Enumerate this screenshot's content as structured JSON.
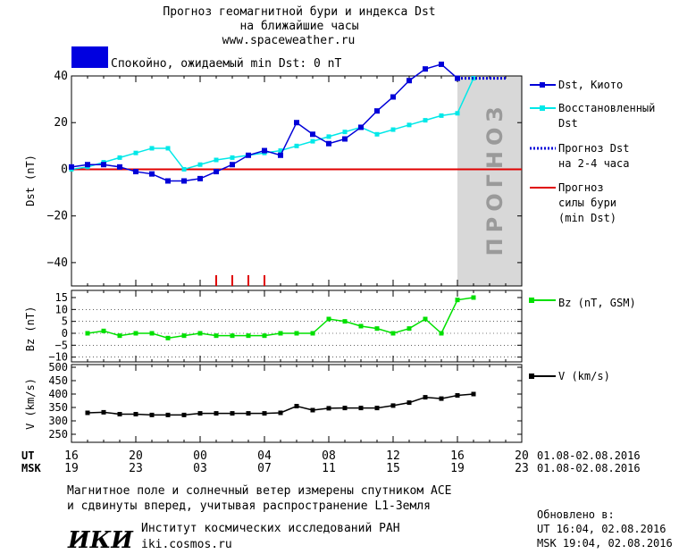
{
  "header": {
    "title_line1": "Прогноз геомагнитной бури и индекса Dst",
    "title_line2": "на ближайшие часы",
    "site": "www.spaceweather.ru",
    "status_text": "Спокойно, ожидаемый min Dst: 0 nT",
    "status_color": "#0000e0"
  },
  "legend": {
    "dst_kyoto": "Dst, Киото",
    "restored_1": "Восстановленный",
    "restored_2": "Dst",
    "forecast_dst_1": "Прогноз Dst",
    "forecast_dst_2": "на 2-4 часа",
    "storm_1": "Прогноз",
    "storm_2": "силы бури",
    "storm_3": "(min Dst)",
    "bz": "Bz (nT, GSM)",
    "v": "V (km/s)"
  },
  "forecast_watermark": "ПРОГНОЗ",
  "time_axis": {
    "ut_label": "UT",
    "msk_label": "MSK",
    "ut_ticks": [
      "16",
      "20",
      "00",
      "04",
      "08",
      "12",
      "16",
      "20"
    ],
    "msk_ticks": [
      "19",
      "23",
      "03",
      "07",
      "11",
      "15",
      "19",
      "23"
    ],
    "ut_range": "01.08-02.08.2016",
    "msk_range": "01.08-02.08.2016"
  },
  "footer": {
    "note_line1": "Магнитное поле и солнечный ветер измерены спутником ACE",
    "note_line2": "и сдвинуты вперед, учитывая распространение L1-Земля",
    "org_logo": "ИКИ",
    "org_name": "Институт космических исследований РАН",
    "org_site": "iki.cosmos.ru",
    "updated_label": "Обновлено в:",
    "updated_ut": "UT  16:04, 02.08.2016",
    "updated_msk": "MSK 19:04, 02.08.2016"
  },
  "colors": {
    "dst_kyoto": "#0000d8",
    "restored": "#00e8e8",
    "forecast_dst": "#0000d8",
    "storm": "#e00000",
    "bz": "#00e000",
    "v": "#000000",
    "forecast_shade": "#d8d8d8"
  },
  "chart_data": [
    {
      "type": "line",
      "ylabel": "Dst (nT)",
      "x_unit": "hours from 16 UT 01.08.2016",
      "xlim": [
        0,
        28
      ],
      "ylim": [
        -50,
        40
      ],
      "yticks": [
        -40,
        -20,
        0,
        20,
        40
      ],
      "forecast_region": [
        24,
        28
      ],
      "series": [
        {
          "name": "Dst, Киото",
          "x": [
            0,
            1,
            2,
            3,
            4,
            5,
            6,
            7,
            8,
            9,
            10,
            11,
            12,
            13,
            14,
            15,
            16,
            17,
            18,
            19,
            20,
            21,
            22,
            23,
            24
          ],
          "y": [
            1,
            2,
            2,
            1,
            -1,
            -2,
            -5,
            -5,
            -4,
            -1,
            2,
            6,
            8,
            6,
            20,
            15,
            11,
            13,
            18,
            25,
            31,
            38,
            43,
            45,
            39
          ]
        },
        {
          "name": "Восстановленный Dst",
          "x": [
            0,
            1,
            2,
            3,
            4,
            5,
            6,
            7,
            8,
            9,
            10,
            11,
            12,
            13,
            14,
            15,
            16,
            17,
            18,
            19,
            20,
            21,
            22,
            23,
            24,
            25
          ],
          "y": [
            0,
            1,
            3,
            5,
            7,
            9,
            9,
            0,
            2,
            4,
            5,
            6,
            7,
            8,
            10,
            12,
            14,
            16,
            18,
            15,
            17,
            19,
            21,
            23,
            24,
            39
          ]
        },
        {
          "name": "Прогноз Dst на 2-4 часа",
          "x": [
            24,
            27
          ],
          "y": [
            39,
            39
          ]
        },
        {
          "name": "Прогноз силы бури (min Dst)",
          "x": [
            0,
            28
          ],
          "y": [
            0,
            0
          ]
        }
      ],
      "storm_markers_x": [
        9,
        10,
        11,
        12
      ]
    },
    {
      "type": "line",
      "ylabel": "Bz (nT)",
      "ylim": [
        -12,
        18
      ],
      "yticks": [
        -10,
        -5,
        0,
        5,
        10,
        15
      ],
      "series": [
        {
          "name": "Bz (nT, GSM)",
          "x": [
            1,
            2,
            3,
            4,
            5,
            6,
            7,
            8,
            9,
            10,
            11,
            12,
            13,
            14,
            15,
            16,
            17,
            18,
            19,
            20,
            21,
            22,
            23,
            24,
            25
          ],
          "y": [
            0,
            1,
            -1,
            0,
            0,
            -2,
            -1,
            0,
            -1,
            -1,
            -1,
            -1,
            0,
            0,
            0,
            6,
            5,
            3,
            2,
            0,
            2,
            6,
            0,
            14,
            15
          ]
        }
      ]
    },
    {
      "type": "line",
      "ylabel": "V (km/s)",
      "ylim": [
        220,
        510
      ],
      "yticks": [
        250,
        300,
        350,
        400,
        450,
        500
      ],
      "series": [
        {
          "name": "V (km/s)",
          "x": [
            1,
            2,
            3,
            4,
            5,
            6,
            7,
            8,
            9,
            10,
            11,
            12,
            13,
            14,
            15,
            16,
            17,
            18,
            19,
            20,
            21,
            22,
            23,
            24,
            25
          ],
          "y": [
            330,
            332,
            325,
            325,
            322,
            322,
            322,
            328,
            328,
            328,
            328,
            328,
            330,
            355,
            340,
            347,
            348,
            348,
            348,
            357,
            368,
            388,
            383,
            395,
            400
          ]
        }
      ]
    }
  ]
}
